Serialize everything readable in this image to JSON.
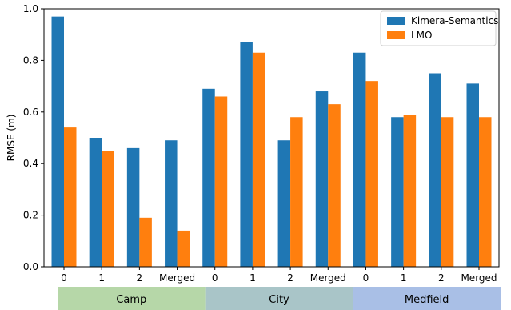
{
  "chart_data": {
    "type": "bar",
    "ylabel": "RMSE (m)",
    "xlabel": "",
    "ylim": [
      0,
      1.0
    ],
    "yticks": [
      0.0,
      0.2,
      0.4,
      0.6,
      0.8,
      1.0
    ],
    "ytick_labels": [
      "0.0",
      "0.2",
      "0.4",
      "0.6",
      "0.8",
      "1.0"
    ],
    "categories": [
      "0",
      "1",
      "2",
      "Merged",
      "0",
      "1",
      "2",
      "Merged",
      "0",
      "1",
      "2",
      "Merged"
    ],
    "series": [
      {
        "name": "Kimera-Semantics",
        "color": "#1f77b4",
        "values": [
          0.97,
          0.5,
          0.46,
          0.49,
          0.69,
          0.87,
          0.49,
          0.68,
          0.83,
          0.58,
          0.75,
          0.71
        ]
      },
      {
        "name": "LMO",
        "color": "#ff7f0e",
        "values": [
          0.54,
          0.45,
          0.19,
          0.14,
          0.66,
          0.83,
          0.58,
          0.63,
          0.72,
          0.59,
          0.58,
          0.58
        ]
      }
    ],
    "groups": [
      {
        "label": "Camp",
        "start": 0,
        "end": 3,
        "color": "#b6d7a8"
      },
      {
        "label": "City",
        "start": 4,
        "end": 7,
        "color": "#a9c5c8"
      },
      {
        "label": "Medfield",
        "start": 8,
        "end": 11,
        "color": "#a9bfe6"
      }
    ],
    "legend_position": "top-right",
    "grid": false
  }
}
